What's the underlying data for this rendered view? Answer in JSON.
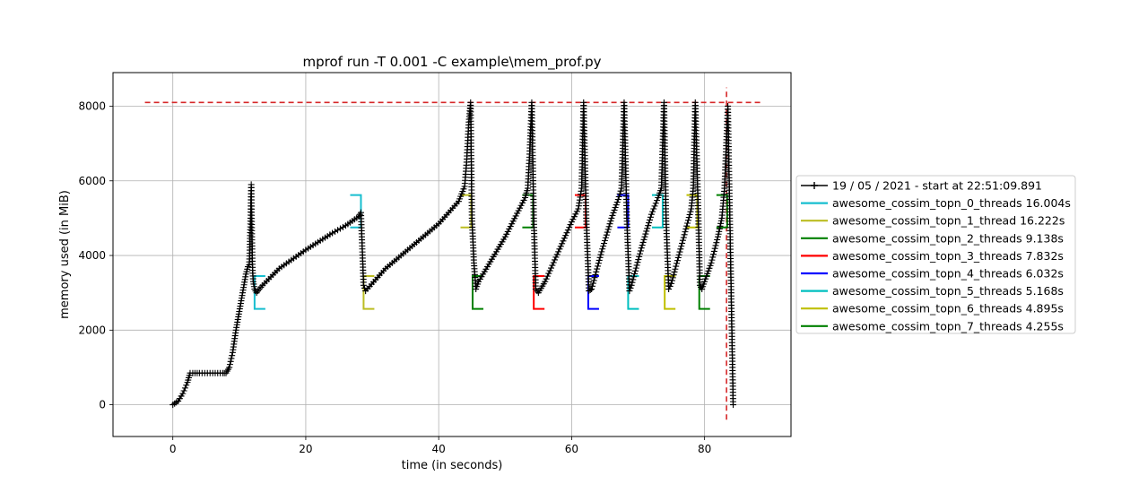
{
  "chart_data": {
    "type": "line",
    "title": "mprof run -T 0.001 -C example\\mem_prof.py",
    "xlabel": "time (in seconds)",
    "ylabel": "memory used (in MiB)",
    "xlim": [
      -9,
      93
    ],
    "ylim": [
      -850,
      8900
    ],
    "xticks": [
      0,
      20,
      40,
      60,
      80
    ],
    "yticks": [
      0,
      2000,
      4000,
      6000,
      8000
    ],
    "grid": true,
    "legend_position": "outside-right",
    "memory_series": {
      "name": "19 / 05 / 2021 - start at 22:51:09.891",
      "color": "#000000",
      "marker": "plus",
      "x": [
        0,
        0.8,
        1.5,
        2.2,
        2.6,
        3.0,
        4.0,
        6.0,
        7.5,
        8.0,
        8.5,
        9.0,
        9.5,
        10.0,
        10.5,
        11.0,
        11.3,
        11.5,
        11.6,
        11.7,
        11.8,
        11.9,
        12.0,
        12.1,
        12.3,
        12.6,
        13.0,
        13.5,
        16.0,
        20.0,
        24.0,
        26.0,
        28.0,
        28.3,
        28.7,
        29.0,
        32.0,
        36.0,
        40.0,
        43.0,
        43.9,
        44.2,
        44.5,
        44.8,
        45.0,
        45.3,
        45.6,
        46.0,
        48.0,
        50.0,
        52.0,
        53.0,
        53.4,
        53.7,
        54.0,
        54.3,
        54.6,
        55.0,
        56.0,
        58.0,
        60.0,
        61.0,
        61.5,
        61.8,
        62.2,
        62.6,
        63.0,
        64.5,
        66.0,
        67.0,
        67.5,
        67.9,
        68.3,
        68.7,
        69.0,
        70.5,
        72.0,
        73.0,
        73.5,
        73.9,
        74.2,
        74.6,
        75.0,
        76.5,
        78.0,
        78.3,
        78.6,
        79.0,
        79.3,
        79.6,
        80.0,
        81.0,
        82.0,
        82.6,
        83.0,
        83.5,
        84.0,
        84.3
      ],
      "y": [
        0,
        100,
        300,
        600,
        850,
        850,
        850,
        850,
        850,
        850,
        1000,
        1400,
        2000,
        2500,
        3000,
        3500,
        3700,
        3750,
        4300,
        5000,
        5900,
        4500,
        3600,
        3300,
        3100,
        3000,
        3100,
        3200,
        3650,
        4150,
        4600,
        4800,
        5050,
        5150,
        3200,
        3050,
        3650,
        4250,
        4850,
        5450,
        5850,
        6500,
        7500,
        8100,
        5000,
        3800,
        3100,
        3300,
        3900,
        4500,
        5200,
        5550,
        5800,
        6800,
        8100,
        5000,
        3100,
        3000,
        3300,
        4100,
        4900,
        5250,
        5800,
        8100,
        5000,
        3050,
        3100,
        4100,
        5000,
        5500,
        5800,
        8100,
        5000,
        3050,
        3200,
        4200,
        5100,
        5550,
        5800,
        8100,
        5000,
        3100,
        3250,
        4250,
        5250,
        5800,
        8100,
        5500,
        3200,
        3100,
        3300,
        3800,
        4500,
        5000,
        5800,
        8000,
        3000,
        0
      ]
    },
    "max_memory_line": {
      "y": 8100,
      "color": "#d62728",
      "x_from": -4.2,
      "x_to": 88.5
    },
    "max_time_line": {
      "x": 83.3,
      "color": "#d62728",
      "y_from": -400,
      "y_to": 8500
    },
    "series": [
      {
        "name": "awesome_cossim_topn_0_threads 16.004s",
        "color": "#17becf",
        "start": 12.3,
        "end": 28.3
      },
      {
        "name": "awesome_cossim_topn_1_thread 16.222s",
        "color": "#bcbd22",
        "start": 28.7,
        "end": 44.9
      },
      {
        "name": "awesome_cossim_topn_2_threads 9.138s",
        "color": "#008000",
        "start": 45.1,
        "end": 54.2
      },
      {
        "name": "awesome_cossim_topn_3_threads 7.832s",
        "color": "#ff0000",
        "start": 54.3,
        "end": 62.1
      },
      {
        "name": "awesome_cossim_topn_4_threads 6.032s",
        "color": "#0000ff",
        "start": 62.5,
        "end": 68.5
      },
      {
        "name": "awesome_cossim_topn_5_threads 5.168s",
        "color": "#00bfbf",
        "start": 68.5,
        "end": 73.7
      },
      {
        "name": "awesome_cossim_topn_6_threads 4.895s",
        "color": "#bfbf00",
        "start": 74.0,
        "end": 78.9
      },
      {
        "name": "awesome_cossim_topn_7_threads 4.255s",
        "color": "#008000",
        "start": 79.2,
        "end": 83.4
      }
    ],
    "bracket_levels": {
      "low_bottom": 2570,
      "low_top": 3450,
      "high_bottom": 4750,
      "high_top": 5620
    }
  }
}
